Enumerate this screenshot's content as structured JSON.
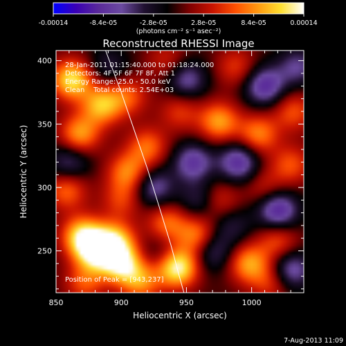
{
  "chart_data": {
    "type": "heatmap",
    "title": "Reconstructed RHESSI Image",
    "xlabel": "Heliocentric X (arcsec)",
    "ylabel": "Heliocentric Y (arcsec)",
    "xlim": [
      850,
      1040
    ],
    "ylim": [
      217,
      408
    ],
    "x_ticks": [
      850,
      900,
      950,
      1000
    ],
    "y_ticks": [
      250,
      300,
      350,
      400
    ],
    "x_tick_labels": [
      "850",
      "900",
      "950",
      "1000"
    ],
    "y_tick_labels": [
      "250",
      "300",
      "350",
      "400"
    ],
    "colorbar": {
      "range": [
        -0.00014,
        0.00014
      ],
      "ticks": [
        -0.00014,
        -8.4e-05,
        -2.8e-05,
        2.8e-05,
        8.4e-05,
        0.00014
      ],
      "tick_labels": [
        "-0.00014",
        "-8.4e-05",
        "-2.8e-05",
        "2.8e-05",
        "8.4e-05",
        "0.00014"
      ],
      "unit_label": "(photons cm⁻² s⁻¹ asec⁻²)",
      "colors": [
        "#0000ff",
        "#3a00b4",
        "#5a2a9a",
        "#6b4aa0",
        "#201030",
        "#000000",
        "#800000",
        "#c81400",
        "#ff5000",
        "#ff9a10",
        "#ffe030",
        "#ffffff"
      ]
    },
    "info_lines": [
      "28-Jan-2011 01:15:40.000 to 01:18:24.000",
      "Detectors: 4F 5F 6F 7F 8F, Att 1",
      "Energy Range: 25.0 - 50.0 keV",
      "Clean    Total counts: 2.54E+03"
    ],
    "peak_label": "Position of Peak = [943,237]",
    "limb_curve": [
      [
        888,
        408
      ],
      [
        900,
        375
      ],
      [
        910,
        345
      ],
      [
        920,
        315
      ],
      [
        929,
        285
      ],
      [
        938,
        255
      ],
      [
        944,
        232
      ],
      [
        950,
        210
      ]
    ],
    "sources": [
      {
        "x": 880,
        "y": 250,
        "value": 0.00013
      },
      {
        "x": 870,
        "y": 262,
        "value": 0.00011
      },
      {
        "x": 900,
        "y": 240,
        "value": 0.00012
      },
      {
        "x": 895,
        "y": 258,
        "value": 0.0001
      },
      {
        "x": 943,
        "y": 237,
        "value": 0.00014
      },
      {
        "x": 958,
        "y": 262,
        "value": 8e-05
      },
      {
        "x": 935,
        "y": 272,
        "value": 7e-05
      },
      {
        "x": 915,
        "y": 226,
        "value": 8e-05
      },
      {
        "x": 998,
        "y": 240,
        "value": 9e-05
      },
      {
        "x": 1020,
        "y": 258,
        "value": 6e-05
      },
      {
        "x": 975,
        "y": 290,
        "value": 5e-05
      },
      {
        "x": 1010,
        "y": 300,
        "value": 4e-05
      },
      {
        "x": 858,
        "y": 298,
        "value": 7e-05
      },
      {
        "x": 905,
        "y": 312,
        "value": 8e-05
      },
      {
        "x": 900,
        "y": 290,
        "value": 5e-05
      },
      {
        "x": 920,
        "y": 332,
        "value": 7e-05
      },
      {
        "x": 868,
        "y": 342,
        "value": 9e-05
      },
      {
        "x": 885,
        "y": 365,
        "value": 0.0001
      },
      {
        "x": 862,
        "y": 385,
        "value": 0.00012
      },
      {
        "x": 905,
        "y": 372,
        "value": 6e-05
      },
      {
        "x": 945,
        "y": 360,
        "value": 5e-05
      },
      {
        "x": 975,
        "y": 352,
        "value": 9e-05
      },
      {
        "x": 1005,
        "y": 342,
        "value": 8e-05
      },
      {
        "x": 1030,
        "y": 318,
        "value": 6e-05
      },
      {
        "x": 1032,
        "y": 360,
        "value": 6e-05
      },
      {
        "x": 988,
        "y": 395,
        "value": 5e-05
      },
      {
        "x": 935,
        "y": 400,
        "value": 4e-05
      },
      {
        "x": 1015,
        "y": 225,
        "value": 5e-05
      },
      {
        "x": 872,
        "y": 225,
        "value": 6e-05
      },
      {
        "x": 925,
        "y": 300,
        "value": -7e-05
      },
      {
        "x": 955,
        "y": 320,
        "value": -8e-05
      },
      {
        "x": 990,
        "y": 320,
        "value": -9e-05
      },
      {
        "x": 1020,
        "y": 282,
        "value": -0.0001
      },
      {
        "x": 970,
        "y": 250,
        "value": -6e-05
      },
      {
        "x": 1030,
        "y": 235,
        "value": -8e-05
      },
      {
        "x": 860,
        "y": 320,
        "value": -6e-05
      },
      {
        "x": 950,
        "y": 385,
        "value": -7e-05
      },
      {
        "x": 1010,
        "y": 380,
        "value": -9e-05
      },
      {
        "x": 1035,
        "y": 395,
        "value": -6e-05
      },
      {
        "x": 960,
        "y": 290,
        "value": -5e-05
      },
      {
        "x": 890,
        "y": 395,
        "value": -4e-05
      },
      {
        "x": 930,
        "y": 248,
        "value": -3e-05
      },
      {
        "x": 985,
        "y": 270,
        "value": -4e-05
      }
    ]
  },
  "footer": {
    "timestamp": "7-Aug-2013 11:09"
  }
}
